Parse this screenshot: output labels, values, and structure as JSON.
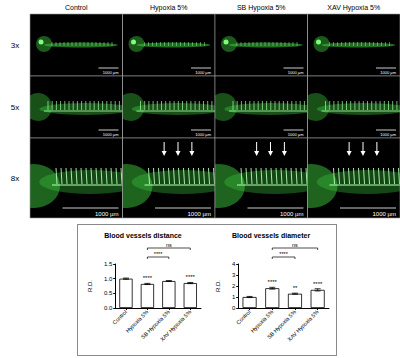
{
  "figure": {
    "columns": [
      "Control",
      "Hypoxia 5%",
      "SB Hypoxia 5%",
      "XAV Hypoxia 5%"
    ],
    "rows": [
      "3x",
      "5x",
      "8x"
    ],
    "scale_bar": "1000 µm"
  },
  "chart_data": [
    {
      "type": "bar",
      "title": "Blood vessels distance",
      "y_label": "R.D.",
      "categories": [
        "Control",
        "Hypoxia 5%",
        "SB Hypoxia 5%",
        "XAV Hypoxia 5%"
      ],
      "values": [
        1.0,
        0.82,
        0.92,
        0.85
      ],
      "errors": [
        0.02,
        0.02,
        0.015,
        0.02
      ],
      "significance": [
        null,
        "****",
        null,
        "****"
      ],
      "comparisons": [
        {
          "groups": [
            1,
            2
          ],
          "label": "****"
        },
        {
          "groups": [
            1,
            3
          ],
          "label": "ns"
        }
      ],
      "color": "#ffffff",
      "ylim": [
        0,
        1.5
      ],
      "yticks": [
        {
          "value": 0,
          "label": "0.0"
        },
        {
          "value": 0.5,
          "label": "0.5"
        },
        {
          "value": 1,
          "label": "1.0"
        },
        {
          "value": 1.5,
          "label": "1.5"
        }
      ],
      "grid": false
    },
    {
      "type": "bar",
      "title": "Blood vessels diameter",
      "y_label": "R.D.",
      "categories": [
        "Control",
        "Hypoxia 5%",
        "SB Hypoxia 5%",
        "XAV Hypoxia 5%"
      ],
      "values": [
        1.0,
        1.8,
        1.3,
        1.65
      ],
      "errors": [
        0.05,
        0.08,
        0.05,
        0.1
      ],
      "significance": [
        null,
        "****",
        "**",
        "****"
      ],
      "comparisons": [
        {
          "groups": [
            1,
            2
          ],
          "label": "****"
        },
        {
          "groups": [
            1,
            3
          ],
          "label": "ns"
        }
      ],
      "color": "#ffffff",
      "ylim": [
        0,
        4
      ],
      "yticks": [
        0,
        1,
        2,
        3,
        4
      ],
      "grid": false
    }
  ]
}
